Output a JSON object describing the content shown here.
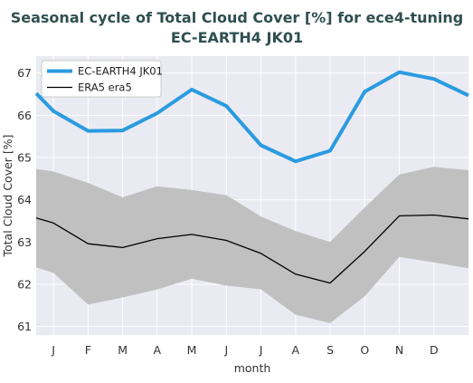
{
  "chart_data": {
    "type": "line",
    "title_line1": "Seasonal cycle of Total Cloud Cover [%] for ece4-tuning",
    "title_line2": "EC-EARTH4 JK01",
    "xlabel": "month",
    "ylabel": "Total Cloud Cover [%]",
    "categories": [
      "J",
      "F",
      "M",
      "A",
      "M",
      "J",
      "J",
      "A",
      "S",
      "O",
      "N",
      "D"
    ],
    "ylim": [
      60.8,
      67.4
    ],
    "yticks": [
      61,
      62,
      63,
      64,
      65,
      66,
      67
    ],
    "grid": true,
    "legend_position": "top-left",
    "series": [
      {
        "name": "EC-EARTH4 JK01",
        "color": "#2b9be0",
        "edge_start": 66.52,
        "edge_end": 66.47,
        "values": [
          66.1,
          65.63,
          65.64,
          66.05,
          66.61,
          66.22,
          65.29,
          64.91,
          65.16,
          66.56,
          67.02,
          66.86
        ]
      },
      {
        "name": "ERA5 era5",
        "color": "#000000",
        "edge_start": 63.57,
        "edge_end": 63.55,
        "values": [
          63.45,
          62.96,
          62.87,
          63.08,
          63.18,
          63.04,
          62.73,
          62.24,
          62.03,
          62.78,
          63.62,
          63.64
        ]
      }
    ],
    "band": {
      "color": "#c0c0c0",
      "edge_start_upper": 64.73,
      "edge_start_lower": 62.4,
      "edge_end_upper": 64.7,
      "edge_end_lower": 62.38,
      "upper": [
        64.67,
        64.4,
        64.06,
        64.32,
        64.23,
        64.11,
        63.6,
        63.26,
        63.0,
        63.82,
        64.6,
        64.78
      ],
      "lower": [
        62.27,
        61.52,
        61.69,
        61.88,
        62.13,
        61.97,
        61.88,
        61.28,
        61.08,
        61.72,
        62.65,
        62.52
      ]
    }
  }
}
